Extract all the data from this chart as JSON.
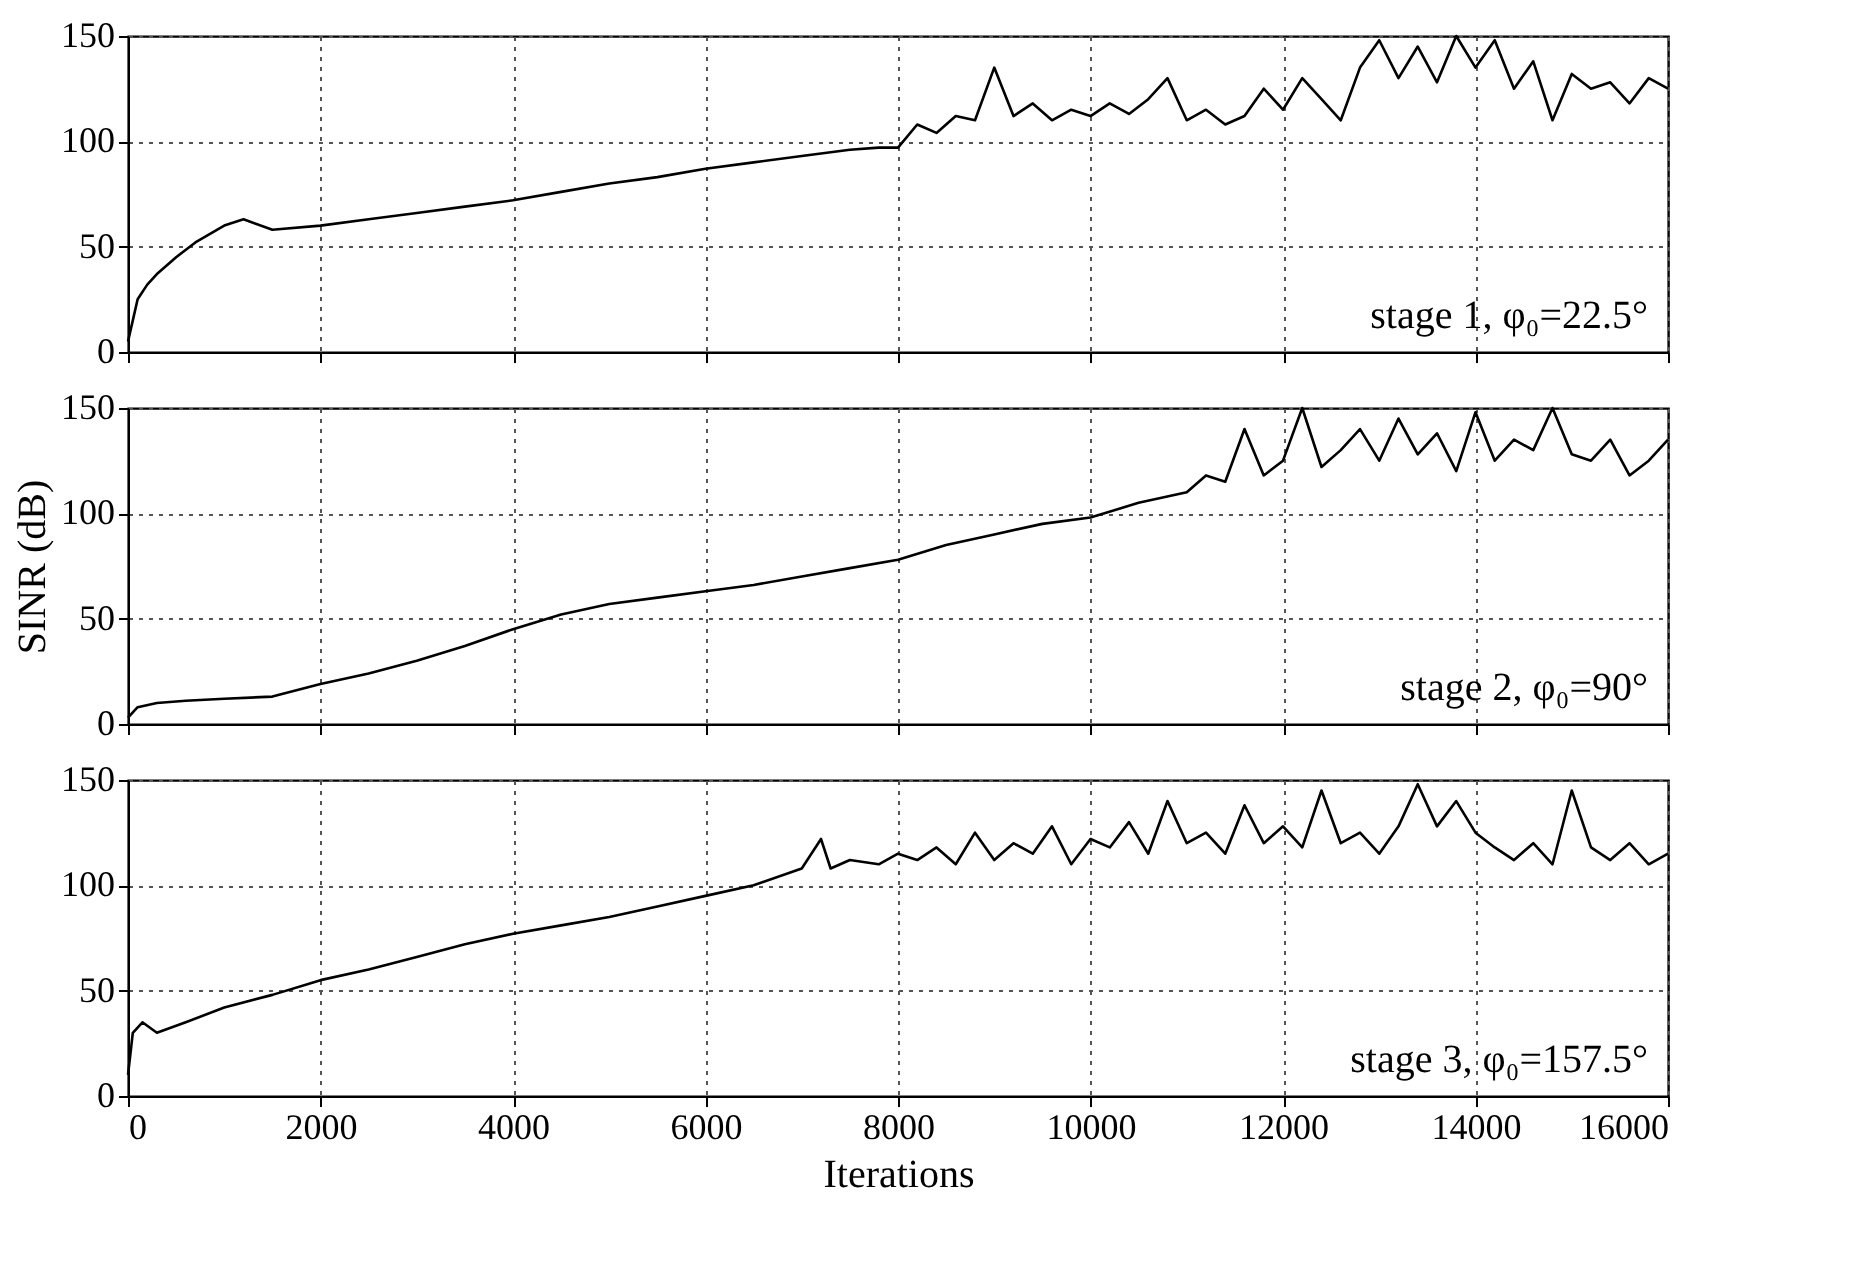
{
  "chart_data": [
    {
      "type": "line",
      "x": [
        0,
        50,
        100,
        200,
        300,
        500,
        700,
        1000,
        1200,
        1500,
        2000,
        2500,
        3000,
        3500,
        4000,
        4500,
        5000,
        5500,
        6000,
        6500,
        7000,
        7500,
        7800,
        8000,
        8200,
        8400,
        8600,
        8800,
        9000,
        9200,
        9400,
        9600,
        9800,
        10000,
        10200,
        10400,
        10600,
        10800,
        11000,
        11200,
        11400,
        11600,
        11800,
        12000,
        12200,
        12400,
        12600,
        12800,
        13000,
        13200,
        13400,
        13600,
        13800,
        14000,
        14200,
        14400,
        14600,
        14800,
        15000,
        15200,
        15400,
        15600,
        15800,
        16000
      ],
      "series": [
        {
          "color": "#000000",
          "values": [
            5,
            15,
            25,
            32,
            37,
            45,
            52,
            60,
            63,
            58,
            60,
            63,
            66,
            69,
            72,
            76,
            80,
            83,
            87,
            90,
            93,
            96,
            97,
            97,
            108,
            104,
            112,
            110,
            135,
            112,
            118,
            110,
            115,
            112,
            118,
            113,
            120,
            130,
            110,
            115,
            108,
            112,
            125,
            115,
            130,
            120,
            110,
            135,
            148,
            130,
            145,
            128,
            150,
            135,
            148,
            125,
            138,
            110,
            132,
            125,
            128,
            118,
            130,
            125
          ]
        }
      ],
      "xlim": [
        0,
        16000
      ],
      "xticks": [
        0,
        2000,
        4000,
        6000,
        8000,
        10000,
        12000,
        14000,
        16000
      ],
      "ylim": [
        0,
        150
      ],
      "yticks": [
        0,
        50,
        100,
        150
      ],
      "grid": true,
      "tick_labels": "y",
      "line_style": "solid",
      "annotations": [
        "stage 1, φ₀=22.5°"
      ]
    },
    {
      "type": "line",
      "x": [
        0,
        100,
        300,
        600,
        1000,
        1500,
        2000,
        2500,
        3000,
        3500,
        4000,
        4500,
        5000,
        5500,
        6000,
        6500,
        7000,
        7500,
        8000,
        8500,
        9000,
        9500,
        10000,
        10500,
        11000,
        11200,
        11400,
        11600,
        11800,
        12000,
        12200,
        12400,
        12600,
        12800,
        13000,
        13200,
        13400,
        13600,
        13800,
        14000,
        14200,
        14400,
        14600,
        14800,
        15000,
        15200,
        15400,
        15600,
        15800,
        16000
      ],
      "series": [
        {
          "color": "#000000",
          "values": [
            3,
            8,
            10,
            11,
            12,
            13,
            19,
            24,
            30,
            37,
            45,
            52,
            57,
            60,
            63,
            66,
            70,
            74,
            78,
            85,
            90,
            95,
            98,
            105,
            110,
            118,
            115,
            140,
            118,
            125,
            150,
            122,
            130,
            140,
            125,
            145,
            128,
            138,
            120,
            148,
            125,
            135,
            130,
            150,
            128,
            125,
            135,
            118,
            125,
            135
          ]
        }
      ],
      "xlim": [
        0,
        16000
      ],
      "xticks": [
        0,
        2000,
        4000,
        6000,
        8000,
        10000,
        12000,
        14000,
        16000
      ],
      "ylim": [
        0,
        150
      ],
      "yticks": [
        0,
        50,
        100,
        150
      ],
      "ylabel": "SINR (dB)",
      "grid": true,
      "tick_labels": "y",
      "line_style": "solid",
      "annotations": [
        "stage 2, φ₀=90°"
      ]
    },
    {
      "type": "line",
      "x": [
        0,
        50,
        150,
        300,
        600,
        1000,
        1500,
        2000,
        2500,
        3000,
        3500,
        4000,
        4500,
        5000,
        5500,
        6000,
        6500,
        7000,
        7200,
        7300,
        7500,
        7800,
        8000,
        8200,
        8400,
        8600,
        8800,
        9000,
        9200,
        9400,
        9600,
        9800,
        10000,
        10200,
        10400,
        10600,
        10800,
        11000,
        11200,
        11400,
        11600,
        11800,
        12000,
        12200,
        12400,
        12600,
        12800,
        13000,
        13200,
        13400,
        13600,
        13800,
        14000,
        14200,
        14400,
        14600,
        14800,
        15000,
        15200,
        15400,
        15600,
        15800,
        16000
      ],
      "series": [
        {
          "color": "#000000",
          "values": [
            10,
            30,
            35,
            30,
            35,
            42,
            48,
            55,
            60,
            66,
            72,
            77,
            81,
            85,
            90,
            95,
            100,
            108,
            122,
            108,
            112,
            110,
            115,
            112,
            118,
            110,
            125,
            112,
            120,
            115,
            128,
            110,
            122,
            118,
            130,
            115,
            140,
            120,
            125,
            115,
            138,
            120,
            128,
            118,
            145,
            120,
            125,
            115,
            128,
            148,
            128,
            140,
            125,
            118,
            112,
            120,
            110,
            145,
            118,
            112,
            120,
            110,
            115
          ]
        }
      ],
      "xlim": [
        0,
        16000
      ],
      "xticks": [
        0,
        2000,
        4000,
        6000,
        8000,
        10000,
        12000,
        14000,
        16000
      ],
      "ylim": [
        0,
        150
      ],
      "yticks": [
        0,
        50,
        100,
        150
      ],
      "xlabel": "Iterations",
      "grid": true,
      "line_style": "solid",
      "annotations": [
        "stage 3, φ₀=157.5°"
      ]
    }
  ]
}
